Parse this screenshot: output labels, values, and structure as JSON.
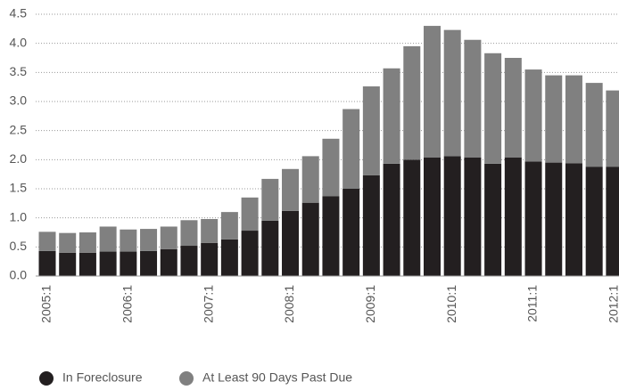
{
  "chart_data": {
    "type": "stacked_bar",
    "categories": [
      "2005:1",
      null,
      null,
      null,
      "2006:1",
      null,
      null,
      null,
      "2007:1",
      null,
      null,
      null,
      "2008:1",
      null,
      null,
      null,
      "2009:1",
      null,
      null,
      null,
      "2010:1",
      null,
      null,
      null,
      "2011:1",
      null,
      null,
      null,
      "2012:1"
    ],
    "series": [
      {
        "name": "In Foreclosure",
        "color": "#231f20",
        "values": [
          0.43,
          0.4,
          0.4,
          0.42,
          0.42,
          0.43,
          0.46,
          0.52,
          0.57,
          0.63,
          0.78,
          0.95,
          1.12,
          1.26,
          1.37,
          1.5,
          1.73,
          1.93,
          2.0,
          2.04,
          2.06,
          2.04,
          1.93,
          2.04,
          1.97,
          1.95,
          1.94,
          1.88,
          1.88
        ]
      },
      {
        "name": "At Least 90 Days Past Due",
        "color": "#808080",
        "values": [
          0.33,
          0.34,
          0.35,
          0.43,
          0.38,
          0.38,
          0.39,
          0.44,
          0.41,
          0.47,
          0.57,
          0.72,
          0.72,
          0.8,
          0.99,
          1.37,
          1.53,
          1.64,
          1.95,
          2.26,
          2.17,
          2.02,
          1.9,
          1.71,
          1.58,
          1.5,
          1.51,
          1.44,
          1.31
        ]
      }
    ],
    "ylim": [
      0,
      4.5
    ],
    "yticks": [
      {
        "value": 0,
        "label": "0.0"
      },
      0.5,
      {
        "value": 1,
        "label": "1.0"
      },
      1.5,
      {
        "value": 2,
        "label": "2.0"
      },
      2.5,
      {
        "value": 3,
        "label": "3.0"
      },
      3.5,
      {
        "value": 4,
        "label": "4.0"
      },
      4.5
    ],
    "grid": true,
    "legend": "bottom"
  }
}
